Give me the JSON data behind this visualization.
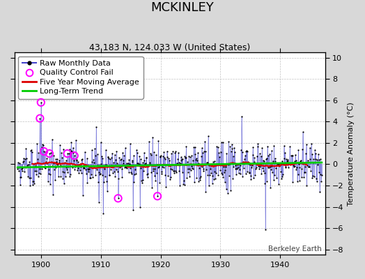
{
  "title": "MCKINLEY",
  "subtitle": "43.183 N, 124.033 W (United States)",
  "ylabel": "Temperature Anomaly (°C)",
  "watermark": "Berkeley Earth",
  "xlim": [
    1895.5,
    1947.5
  ],
  "ylim": [
    -8.5,
    10.5
  ],
  "yticks": [
    -8,
    -6,
    -4,
    -2,
    0,
    2,
    4,
    6,
    8,
    10
  ],
  "xticks": [
    1900,
    1910,
    1920,
    1930,
    1940
  ],
  "bg_color": "#d8d8d8",
  "plot_bg_color": "#ffffff",
  "line_color_raw": "#4444cc",
  "dot_color_raw": "#000000",
  "qc_color": "#ff00ff",
  "ma_color": "#dd0000",
  "trend_color": "#00cc00",
  "title_fontsize": 13,
  "subtitle_fontsize": 9,
  "legend_fontsize": 8,
  "tick_fontsize": 8,
  "ylabel_fontsize": 8
}
